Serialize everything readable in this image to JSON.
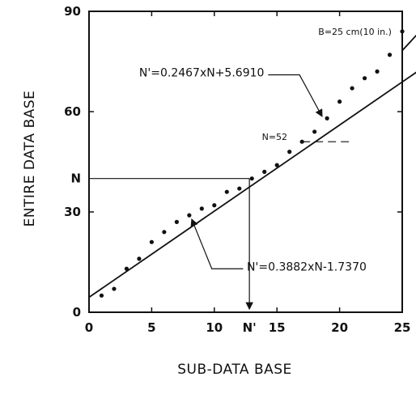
{
  "chart_data": {
    "type": "scatter",
    "title": "",
    "xlabel": "SUB-DATA BASE",
    "ylabel": "ENTIRE DATA BASE",
    "xlim": [
      0,
      25
    ],
    "ylim": [
      0,
      90
    ],
    "x_ticks": [
      0,
      5,
      10,
      15,
      20,
      25
    ],
    "y_ticks": [
      0,
      30,
      60,
      90
    ],
    "grid": false,
    "legend": "none",
    "series": [
      {
        "points": [
          [
            1,
            5
          ],
          [
            2,
            7
          ],
          [
            3,
            13
          ],
          [
            4,
            16
          ],
          [
            5,
            21
          ],
          [
            6,
            24
          ],
          [
            7,
            27
          ],
          [
            8,
            29
          ],
          [
            9,
            31
          ],
          [
            10,
            32
          ],
          [
            11,
            36
          ],
          [
            12,
            37
          ],
          [
            13,
            40
          ],
          [
            14,
            42
          ],
          [
            15,
            44
          ],
          [
            16,
            48
          ],
          [
            17,
            51
          ],
          [
            18,
            54
          ],
          [
            19,
            58
          ],
          [
            20,
            63
          ],
          [
            21,
            67
          ],
          [
            22,
            70
          ],
          [
            23,
            72
          ],
          [
            24,
            77
          ],
          [
            25,
            84
          ]
        ]
      }
    ],
    "fit_lines": [
      {
        "slope": 0.3882,
        "intercept": -1.737,
        "equation": "N'=0.3882xN-1.7370"
      },
      {
        "slope": 0.2467,
        "intercept": 5.691,
        "equation": "N'=0.2467xN+5.6910"
      }
    ],
    "annotations": {
      "condition": "B=25 cm(10 in.)",
      "n52_label": "N=52",
      "n_label": "N",
      "nprime_label": "N'",
      "n_level": 40,
      "nprime_value": 12.8,
      "n52_level": 51
    }
  }
}
